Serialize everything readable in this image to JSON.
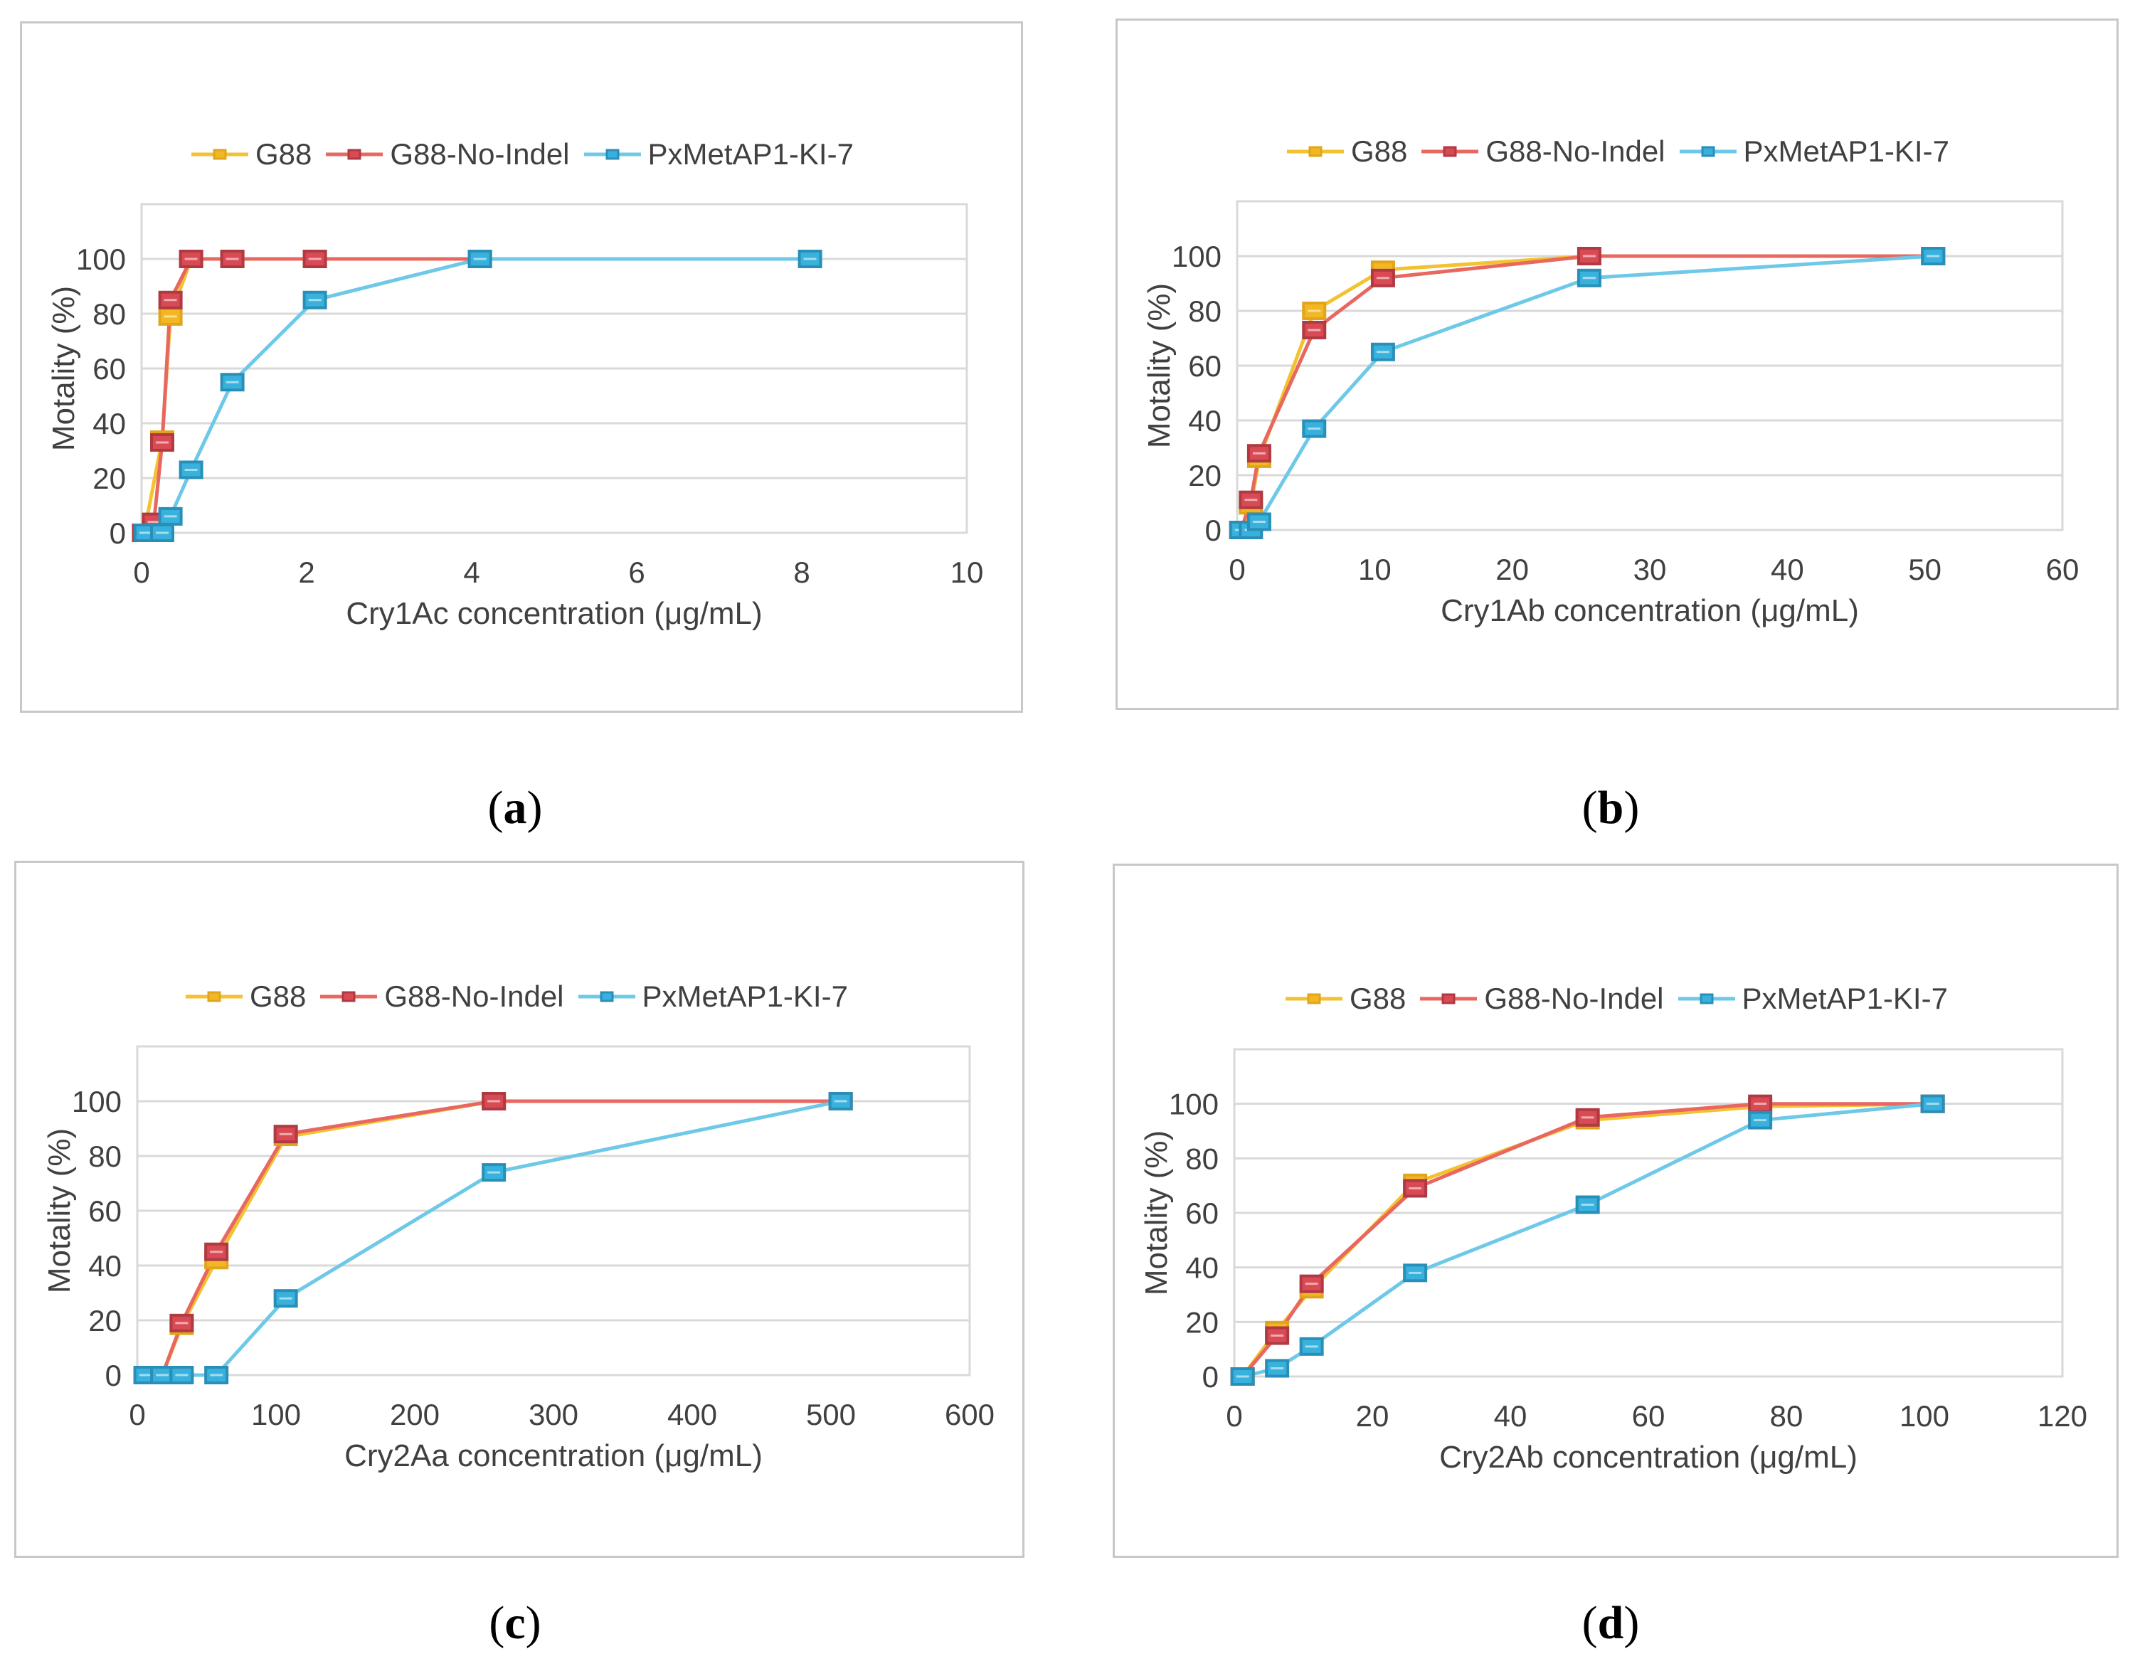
{
  "labels": {
    "a": {
      "open": "(",
      "letter": "a",
      "close": ")"
    },
    "b": {
      "open": "(",
      "letter": "b",
      "close": ")"
    },
    "c": {
      "open": "(",
      "letter": "c",
      "close": ")"
    },
    "d": {
      "open": "(",
      "letter": "d",
      "close": ")"
    }
  },
  "colors": {
    "G88": "#f2c230",
    "G88-No-Indel": "#e8675f",
    "PxMetAP1-KI-7": "#6ec8e8"
  },
  "marker_fill": {
    "G88": "#f4b724",
    "G88-No-Indel": "#d94a54",
    "PxMetAP1-KI-7": "#38b2dc"
  },
  "marker_border": {
    "G88": "#e0a51c",
    "G88-No-Indel": "#b03a42",
    "PxMetAP1-KI-7": "#2a8fb8"
  },
  "chart_data": [
    {
      "id": "a",
      "type": "line",
      "legend": [
        "G88",
        "G88-No-Indel",
        "PxMetAP1-KI-7"
      ],
      "xlabel": "Cry1Ac concentration (μg/mL)",
      "ylabel": "Motality (%)",
      "xlim": [
        0,
        10
      ],
      "ylim": [
        0,
        120
      ],
      "xticks": [
        "0",
        "2",
        "4",
        "6",
        "8",
        "10"
      ],
      "xtick_values": [
        0,
        2,
        4,
        6,
        8,
        10
      ],
      "yticks": [
        "0",
        "20",
        "40",
        "60",
        "80",
        "100"
      ],
      "ytick_values": [
        0,
        20,
        40,
        60,
        80,
        100
      ],
      "series": [
        {
          "name": "G88",
          "x": [
            0.03,
            0.25,
            0.35,
            0.6,
            1.1,
            2.1,
            4.1
          ],
          "y": [
            0,
            34,
            79,
            100,
            100,
            100,
            100
          ]
        },
        {
          "name": "G88-No-Indel",
          "x": [
            0.03,
            0.15,
            0.25,
            0.35,
            0.6,
            1.1,
            2.1,
            4.1
          ],
          "y": [
            0,
            4,
            33,
            85,
            100,
            100,
            100,
            100
          ]
        },
        {
          "name": "PxMetAP1-KI-7",
          "x": [
            0.05,
            0.25,
            0.35,
            0.6,
            1.1,
            2.1,
            4.1,
            8.1
          ],
          "y": [
            0,
            0,
            6,
            23,
            55,
            85,
            100,
            100
          ]
        }
      ]
    },
    {
      "id": "b",
      "type": "line",
      "legend": [
        "G88",
        "G88-No-Indel",
        "PxMetAP1-KI-7"
      ],
      "xlabel": "Cry1Ab concentration (μg/mL)",
      "ylabel": "Motality (%)",
      "xlim": [
        0,
        60
      ],
      "ylim": [
        0,
        120
      ],
      "xticks": [
        "0",
        "10",
        "20",
        "30",
        "40",
        "50",
        "60"
      ],
      "xtick_values": [
        0,
        10,
        20,
        30,
        40,
        50,
        60
      ],
      "yticks": [
        "0",
        "20",
        "40",
        "60",
        "80",
        "100"
      ],
      "ytick_values": [
        0,
        20,
        40,
        60,
        80,
        100
      ],
      "series": [
        {
          "name": "G88",
          "x": [
            0.3,
            1.0,
            1.6,
            5.6,
            10.6,
            25.6,
            50.6
          ],
          "y": [
            0,
            9,
            26,
            80,
            95,
            100,
            100
          ]
        },
        {
          "name": "G88-No-Indel",
          "x": [
            0.3,
            1.0,
            1.6,
            5.6,
            10.6,
            25.6,
            50.6
          ],
          "y": [
            0,
            11,
            28,
            73,
            92,
            100,
            100
          ]
        },
        {
          "name": "PxMetAP1-KI-7",
          "x": [
            0.3,
            1.0,
            1.6,
            5.6,
            10.6,
            25.6,
            50.6
          ],
          "y": [
            0,
            0,
            3,
            37,
            65,
            92,
            100
          ]
        }
      ]
    },
    {
      "id": "c",
      "type": "line",
      "legend": [
        "G88",
        "G88-No-Indel",
        "PxMetAP1-KI-7"
      ],
      "xlabel": "Cry2Aa concentration (μg/mL)",
      "ylabel": "Motality (%)",
      "xlim": [
        0,
        600
      ],
      "ylim": [
        0,
        120
      ],
      "xticks": [
        "0",
        "100",
        "200",
        "300",
        "400",
        "500",
        "600"
      ],
      "xtick_values": [
        0,
        100,
        200,
        300,
        400,
        500,
        600
      ],
      "yticks": [
        "0",
        "20",
        "40",
        "60",
        "80",
        "100"
      ],
      "ytick_values": [
        0,
        20,
        40,
        60,
        80,
        100
      ],
      "series": [
        {
          "name": "G88",
          "x": [
            6,
            18,
            32,
            57,
            107,
            257,
            507
          ],
          "y": [
            0,
            0,
            18,
            42,
            87,
            100,
            100
          ]
        },
        {
          "name": "G88-No-Indel",
          "x": [
            6,
            18,
            32,
            57,
            107,
            257,
            507
          ],
          "y": [
            0,
            0,
            19,
            45,
            88,
            100,
            100
          ]
        },
        {
          "name": "PxMetAP1-KI-7",
          "x": [
            6,
            18,
            32,
            57,
            107,
            257,
            507
          ],
          "y": [
            0,
            0,
            0,
            0,
            28,
            74,
            100
          ]
        }
      ]
    },
    {
      "id": "d",
      "type": "line",
      "legend": [
        "G88",
        "G88-No-Indel",
        "PxMetAP1-KI-7"
      ],
      "xlabel": "Cry2Ab concentration (μg/mL)",
      "ylabel": "Motality (%)",
      "xlim": [
        0,
        120
      ],
      "ylim": [
        0,
        120
      ],
      "xticks": [
        "0",
        "20",
        "40",
        "60",
        "80",
        "100",
        "120"
      ],
      "xtick_values": [
        0,
        20,
        40,
        60,
        80,
        100,
        120
      ],
      "yticks": [
        "0",
        "20",
        "40",
        "60",
        "80",
        "100"
      ],
      "ytick_values": [
        0,
        20,
        40,
        60,
        80,
        100
      ],
      "series": [
        {
          "name": "G88",
          "x": [
            1.2,
            6.2,
            11.2,
            26.2,
            51.2,
            76.2,
            101.2
          ],
          "y": [
            0,
            17,
            32,
            71,
            94,
            99,
            100
          ]
        },
        {
          "name": "G88-No-Indel",
          "x": [
            1.2,
            6.2,
            11.2,
            26.2,
            51.2,
            76.2,
            101.2
          ],
          "y": [
            0,
            15,
            34,
            69,
            95,
            100,
            100
          ]
        },
        {
          "name": "PxMetAP1-KI-7",
          "x": [
            1.2,
            6.2,
            11.2,
            26.2,
            51.2,
            76.2,
            101.2
          ],
          "y": [
            0,
            3,
            11,
            38,
            63,
            94,
            100
          ]
        }
      ]
    }
  ]
}
